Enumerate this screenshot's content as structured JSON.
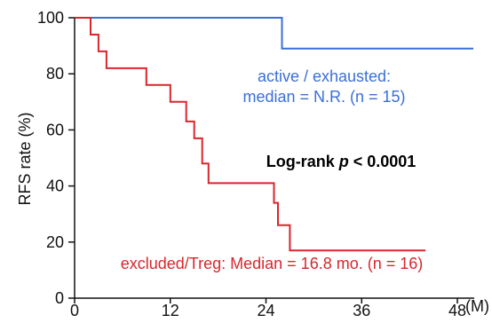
{
  "chart_data": {
    "type": "line",
    "ylabel": "RFS rate (%)",
    "x_unit": "(M)",
    "xlim": [
      0,
      48
    ],
    "ylim": [
      0,
      100
    ],
    "xticks": [
      0,
      12,
      24,
      36,
      48
    ],
    "yticks": [
      0,
      20,
      40,
      60,
      80,
      100
    ],
    "series": [
      {
        "name": "active / exhausted",
        "color": "#3a6fd8",
        "style": "step",
        "x": [
          0,
          26,
          26,
          50
        ],
        "y": [
          100,
          100,
          89,
          89
        ]
      },
      {
        "name": "excluded/Treg",
        "color": "#d8262d",
        "style": "step",
        "x": [
          0,
          2,
          2,
          3,
          3,
          4,
          4,
          9,
          9,
          12,
          12,
          14,
          14,
          15,
          15,
          16,
          16,
          16.8,
          16.8,
          25,
          25,
          25.5,
          25.5,
          26,
          26,
          27,
          27,
          44
        ],
        "y": [
          100,
          100,
          94,
          94,
          88,
          88,
          82,
          82,
          76,
          76,
          70,
          70,
          63,
          63,
          57,
          57,
          48,
          48,
          41,
          41,
          34,
          34,
          26,
          26,
          26,
          26,
          17,
          17
        ]
      }
    ],
    "annotations": {
      "blue_line1": "active / exhausted:",
      "blue_line2": "median = N.R. (n = 15)",
      "logrank_prefix": "Log-rank ",
      "logrank_p": "p",
      "logrank_suffix": " < 0.0001",
      "red_label": "excluded/Treg: Median = 16.8 mo. (n = 16)"
    }
  }
}
